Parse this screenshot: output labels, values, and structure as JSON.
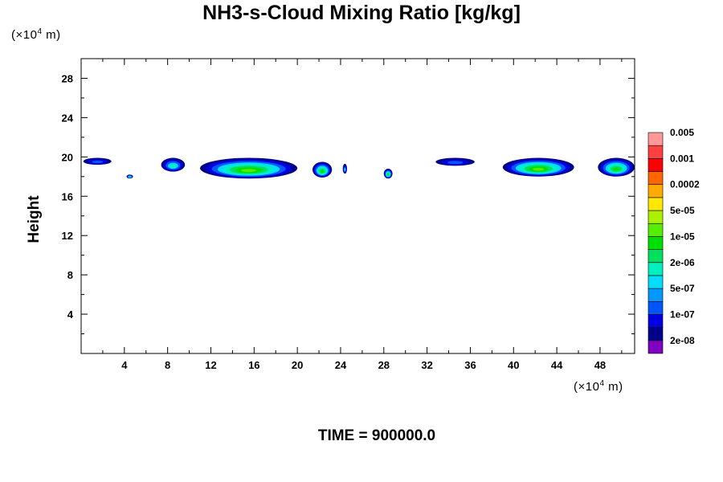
{
  "chart_data": {
    "type": "contour",
    "title": "NH3-s-Cloud Mixing Ratio [kg/kg]",
    "xlabel": "",
    "ylabel": "Height",
    "x_unit_prefix": "(×10",
    "x_unit_exp": "4",
    "x_unit_suffix": " m)",
    "y_unit_prefix": "(×10",
    "y_unit_exp": "4",
    "y_unit_suffix": " m)",
    "xlim": [
      0,
      51.2
    ],
    "ylim": [
      0,
      30
    ],
    "x_ticks": [
      4,
      8,
      12,
      16,
      20,
      24,
      28,
      32,
      36,
      40,
      44,
      48
    ],
    "y_ticks": [
      4,
      8,
      12,
      16,
      20,
      24,
      28
    ],
    "x_tick_labels": [
      "4",
      "8",
      "12",
      "16",
      "20",
      "24",
      "28",
      "32",
      "36",
      "40",
      "44",
      "48"
    ],
    "y_tick_labels": [
      "4",
      "8",
      "12",
      "16",
      "20",
      "24",
      "28"
    ],
    "colorbar": {
      "colors": [
        "#7f00bf",
        "#00008b",
        "#0000e0",
        "#0055ff",
        "#0099ff",
        "#00ddff",
        "#00f0c0",
        "#00e060",
        "#00e000",
        "#55ee00",
        "#aaf000",
        "#ffe800",
        "#ffaa00",
        "#ff6600",
        "#ff0000",
        "#ff4040",
        "#ff9999"
      ],
      "labels": [
        "2e-08",
        "1e-07",
        "5e-07",
        "2e-06",
        "1e-05",
        "5e-05",
        "0.0002",
        "0.001",
        "0.005"
      ]
    },
    "cloud_blobs": [
      {
        "x": [
          0.2,
          2.8
        ],
        "y": [
          19.2,
          19.9
        ],
        "level": 2
      },
      {
        "x": [
          4.2,
          4.8
        ],
        "y": [
          17.8,
          18.2
        ],
        "level": 5
      },
      {
        "x": [
          7.4,
          9.6
        ],
        "y": [
          18.5,
          19.9
        ],
        "level": 4
      },
      {
        "x": [
          11.0,
          20.0
        ],
        "y": [
          17.8,
          19.9
        ],
        "level": 7
      },
      {
        "x": [
          21.4,
          23.2
        ],
        "y": [
          17.9,
          19.5
        ],
        "level": 6
      },
      {
        "x": [
          24.2,
          24.6
        ],
        "y": [
          18.3,
          19.3
        ],
        "level": 3
      },
      {
        "x": [
          28.0,
          28.8
        ],
        "y": [
          17.8,
          18.8
        ],
        "level": 6
      },
      {
        "x": [
          32.8,
          36.4
        ],
        "y": [
          19.1,
          19.9
        ],
        "level": 2
      },
      {
        "x": [
          39.0,
          45.6
        ],
        "y": [
          18.0,
          19.9
        ],
        "level": 7
      },
      {
        "x": [
          47.8,
          51.2
        ],
        "y": [
          18.0,
          19.9
        ],
        "level": 6
      }
    ],
    "time_label": "TIME = 900000.0"
  }
}
